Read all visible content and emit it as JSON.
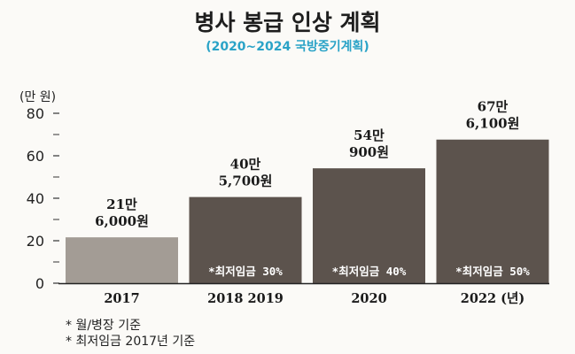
{
  "chart_data": {
    "type": "bar",
    "title": "병사 봉급 인상 계획",
    "subtitle": "(2020~2024 국방중기계획)",
    "ylabel": "(만 원)",
    "ylim": [
      0,
      80
    ],
    "yticks": [
      "0",
      "20",
      "40",
      "60",
      "80"
    ],
    "categories": [
      "2017",
      "2018 2019",
      "2020",
      "2022 (년)"
    ],
    "values": [
      21.6,
      40.57,
      54.09,
      67.61
    ],
    "value_labels": [
      [
        "21만",
        "6,000원"
      ],
      [
        "40만",
        "5,700원"
      ],
      [
        "54만",
        "900원"
      ],
      [
        "67만",
        "6,100원"
      ]
    ],
    "inner_labels": [
      "",
      "*최저임금 30%",
      "*최저임금 40%",
      "*최저임금 50%"
    ],
    "bar_colors": [
      "#a39c95",
      "#5c534d",
      "#5c534d",
      "#5c534d"
    ],
    "grid": false
  },
  "notes": [
    "*  월/병장  기준",
    "*  최저임금  2017년  기준"
  ]
}
